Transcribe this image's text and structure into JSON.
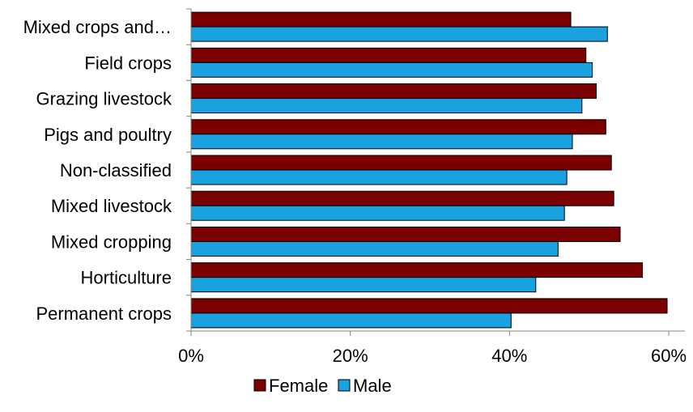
{
  "chart_data": {
    "type": "bar",
    "orientation": "horizontal",
    "categories": [
      "Mixed crops and…",
      "Field crops",
      "Grazing livestock",
      "Pigs and poultry",
      "Non-classified",
      "Mixed livestock",
      "Mixed cropping",
      "Horticulture",
      "Permanent crops"
    ],
    "series": [
      {
        "name": "Female",
        "color": "#7B0000",
        "values": [
          47.7,
          49.6,
          50.9,
          52.1,
          52.8,
          53.1,
          53.9,
          56.7,
          59.8
        ]
      },
      {
        "name": "Male",
        "color": "#1AA1E0",
        "values": [
          52.3,
          50.4,
          49.1,
          47.9,
          47.2,
          46.9,
          46.1,
          43.3,
          40.2
        ]
      }
    ],
    "xlim": [
      0,
      60
    ],
    "xticks": [
      0,
      20,
      40,
      60
    ],
    "xtick_labels": [
      "0%",
      "20%",
      "40%",
      "60%"
    ],
    "title": "",
    "xlabel": "",
    "ylabel": "",
    "grid": false,
    "legend_position": "bottom"
  }
}
